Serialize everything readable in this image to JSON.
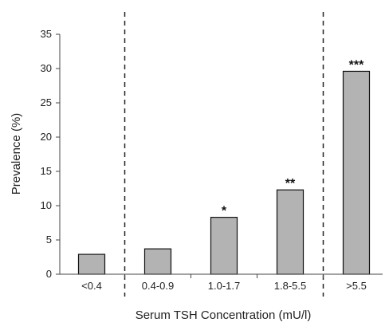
{
  "chart_data": {
    "type": "bar",
    "title": "",
    "xlabel": "Serum TSH Concentration (mU/l)",
    "ylabel": "Prevalence (%)",
    "categories": [
      "<0.4",
      "0.4-0.9",
      "1.0-1.7",
      "1.8-5.5",
      ">5.5"
    ],
    "values": [
      2.9,
      3.7,
      8.3,
      12.3,
      29.6
    ],
    "annotations": [
      "",
      "",
      "*",
      "**",
      "***"
    ],
    "ylim": [
      0,
      35
    ],
    "yticks": [
      "0",
      "5",
      "10",
      "15",
      "20",
      "25",
      "30",
      "35"
    ],
    "reference_lines_between": [
      [
        0,
        1
      ],
      [
        3,
        4
      ]
    ],
    "grid": false,
    "legend": "none",
    "colors": {
      "bar_fill": "#b3b3b3",
      "bar_stroke": "#111111",
      "axis": "#444444",
      "reference_line": "#222222"
    }
  }
}
